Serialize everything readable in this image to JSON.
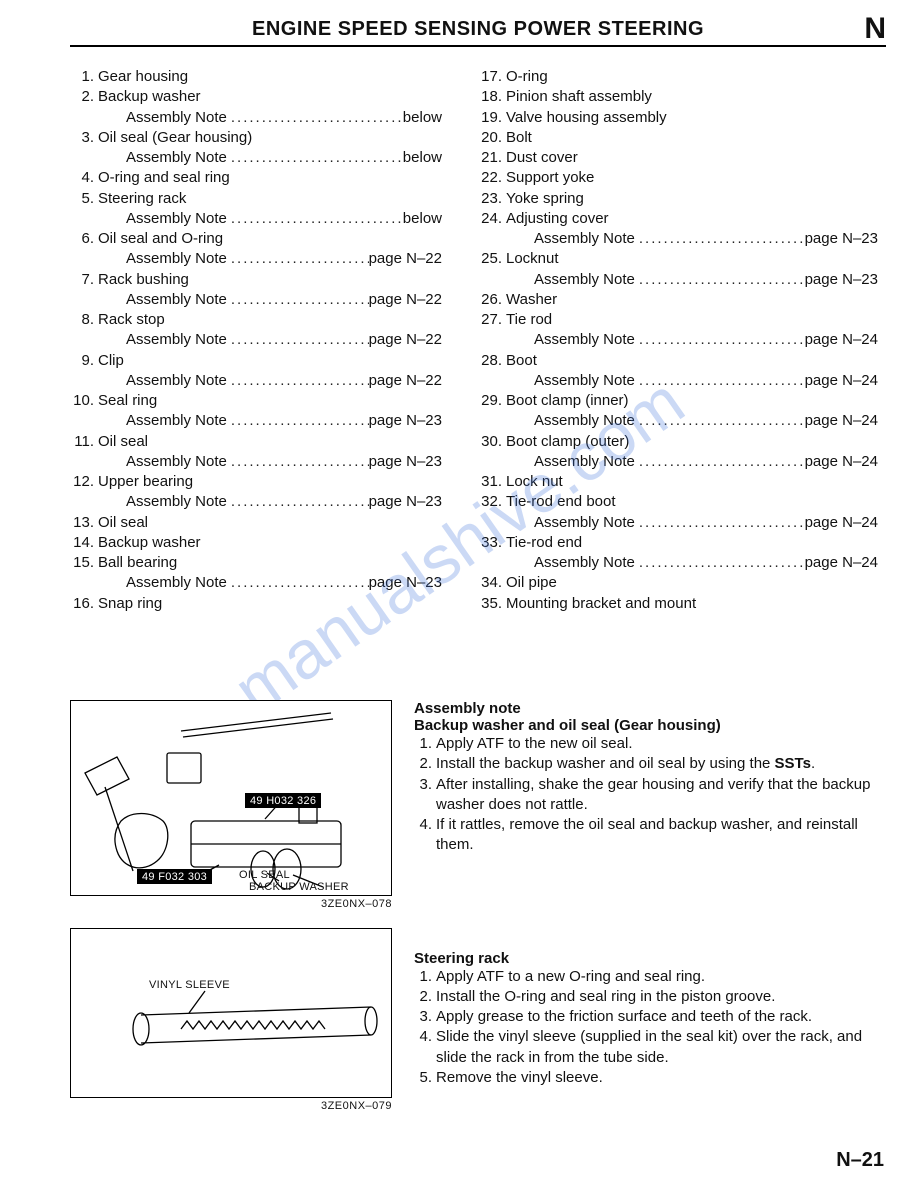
{
  "header": {
    "title": "ENGINE SPEED SENSING POWER STEERING",
    "section_letter": "N"
  },
  "columns": [
    {
      "items": [
        {
          "n": "1.",
          "label": "Gear housing"
        },
        {
          "n": "2.",
          "label": "Backup washer",
          "sub": {
            "label": "Assembly Note",
            "ref": "below"
          }
        },
        {
          "n": "3.",
          "label": "Oil seal (Gear housing)",
          "sub": {
            "label": "Assembly Note",
            "ref": "below"
          }
        },
        {
          "n": "4.",
          "label": "O-ring and seal ring"
        },
        {
          "n": "5.",
          "label": "Steering rack",
          "sub": {
            "label": "Assembly Note",
            "ref": "below"
          }
        },
        {
          "n": "6.",
          "label": "Oil seal and O-ring",
          "sub": {
            "label": "Assembly Note",
            "ref": "page N–22"
          }
        },
        {
          "n": "7.",
          "label": "Rack bushing",
          "sub": {
            "label": "Assembly Note",
            "ref": "page N–22"
          }
        },
        {
          "n": "8.",
          "label": "Rack stop",
          "sub": {
            "label": "Assembly Note",
            "ref": "page N–22"
          }
        },
        {
          "n": "9.",
          "label": "Clip",
          "sub": {
            "label": "Assembly Note",
            "ref": "page N–22"
          }
        },
        {
          "n": "10.",
          "label": "Seal ring",
          "sub": {
            "label": "Assembly Note",
            "ref": "page N–23"
          }
        },
        {
          "n": "11.",
          "label": "Oil seal",
          "sub": {
            "label": "Assembly Note",
            "ref": "page N–23"
          }
        },
        {
          "n": "12.",
          "label": "Upper bearing",
          "sub": {
            "label": "Assembly Note",
            "ref": "page N–23"
          }
        },
        {
          "n": "13.",
          "label": "Oil seal"
        },
        {
          "n": "14.",
          "label": "Backup washer"
        },
        {
          "n": "15.",
          "label": "Ball bearing",
          "sub": {
            "label": "Assembly Note",
            "ref": "page N–23"
          }
        },
        {
          "n": "16.",
          "label": "Snap ring"
        }
      ]
    },
    {
      "items": [
        {
          "n": "17.",
          "label": "O-ring"
        },
        {
          "n": "18.",
          "label": "Pinion shaft assembly"
        },
        {
          "n": "19.",
          "label": "Valve housing assembly"
        },
        {
          "n": "20.",
          "label": "Bolt"
        },
        {
          "n": "21.",
          "label": "Dust cover"
        },
        {
          "n": "22.",
          "label": "Support yoke"
        },
        {
          "n": "23.",
          "label": "Yoke spring"
        },
        {
          "n": "24.",
          "label": "Adjusting cover",
          "sub": {
            "label": "Assembly Note",
            "ref": "page N–23"
          }
        },
        {
          "n": "25.",
          "label": "Locknut",
          "sub": {
            "label": "Assembly Note",
            "ref": "page N–23"
          }
        },
        {
          "n": "26.",
          "label": "Washer"
        },
        {
          "n": "27.",
          "label": "Tie rod",
          "sub": {
            "label": "Assembly Note",
            "ref": "page N–24"
          }
        },
        {
          "n": "28.",
          "label": "Boot",
          "sub": {
            "label": "Assembly Note",
            "ref": "page N–24"
          }
        },
        {
          "n": "29.",
          "label": "Boot clamp (inner)",
          "sub": {
            "label": "Assembly Note",
            "ref": "page N–24"
          }
        },
        {
          "n": "30.",
          "label": "Boot clamp (outer)",
          "sub": {
            "label": "Assembly Note",
            "ref": "page N–24"
          }
        },
        {
          "n": "31.",
          "label": "Lock nut"
        },
        {
          "n": "32.",
          "label": "Tie-rod end boot",
          "sub": {
            "label": "Assembly Note",
            "ref": "page N–24"
          }
        },
        {
          "n": "33.",
          "label": "Tie-rod end",
          "sub": {
            "label": "Assembly Note",
            "ref": "page N–24"
          }
        },
        {
          "n": "34.",
          "label": "Oil pipe"
        },
        {
          "n": "35.",
          "label": "Mounting bracket and mount"
        }
      ]
    }
  ],
  "watermark": "manualshive.com",
  "fig1": {
    "code": "3ZE0NX–078",
    "part_a": "49 H032 326",
    "part_b": "49 F032 303",
    "lbl_oil": "OIL SEAL",
    "lbl_bw": "BACKUP WASHER"
  },
  "fig2": {
    "code": "3ZE0NX–079",
    "lbl_vs": "VINYL SLEEVE"
  },
  "note1": {
    "head": "Assembly note",
    "subhead": "Backup washer and oil seal (Gear housing)",
    "steps": [
      "Apply ATF to the new oil seal.",
      "Install the backup washer and oil seal by using the <b>SSTs</b>.",
      "After installing, shake the gear housing and verify that the backup washer does not rattle.",
      "If it rattles, remove the oil seal and backup washer, and reinstall them."
    ]
  },
  "note2": {
    "subhead": "Steering rack",
    "steps": [
      "Apply ATF to a new O-ring and seal ring.",
      "Install the O-ring and seal ring in the piston groove.",
      "Apply grease to the friction surface and teeth of the rack.",
      "Slide the vinyl sleeve (supplied in the seal kit) over the rack, and slide the rack in from the tube side.",
      "Remove the vinyl sleeve."
    ]
  },
  "page_number": "N–21",
  "dots": "..............................................."
}
